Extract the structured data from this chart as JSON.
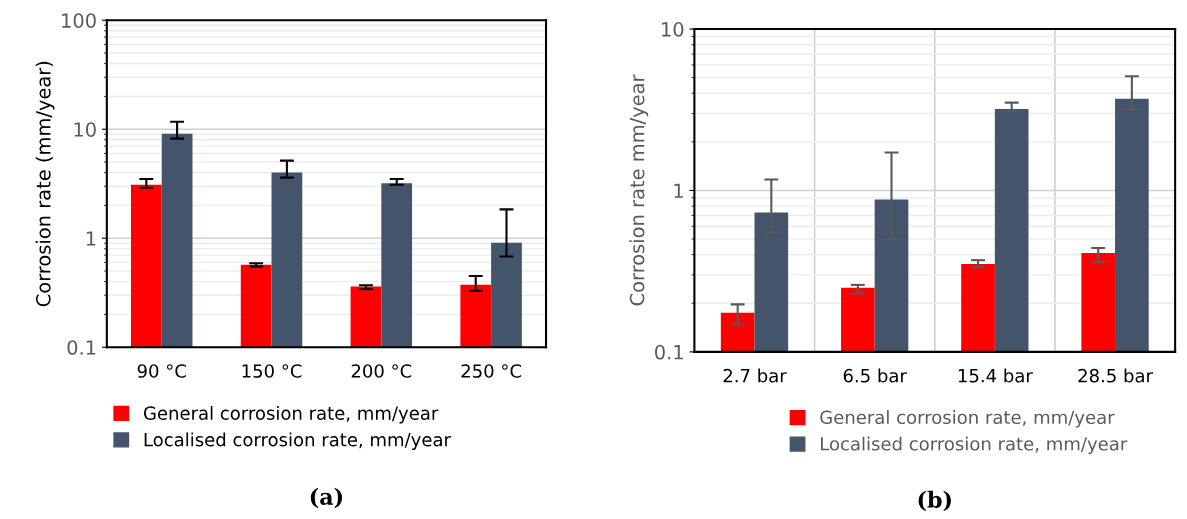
{
  "chart_data": [
    {
      "type": "bar",
      "ylabel": "Corrosion rate (mm/year)",
      "categories": [
        "90 °C",
        "150 °C",
        "200 °C",
        "250 °C"
      ],
      "log": true,
      "ylim": [
        0.1,
        100
      ],
      "yticks": [
        0.1,
        1,
        10,
        100
      ],
      "grid": "y",
      "legend": "bottom",
      "annotations": [
        "(a)"
      ],
      "series": [
        {
          "name": "General corrosion rate, mm/year",
          "color": "#ff0000",
          "values": [
            3.1,
            0.57,
            0.36,
            0.375
          ],
          "errors": [
            [
              2.9,
              3.5
            ],
            [
              0.55,
              0.59
            ],
            [
              0.34,
              0.37
            ],
            [
              0.33,
              0.45
            ]
          ]
        },
        {
          "name": "Localised corrosion rate, mm/year",
          "color": "#44546a",
          "values": [
            9.1,
            4.0,
            3.2,
            0.91
          ],
          "errors": [
            [
              8.2,
              11.7
            ],
            [
              3.6,
              5.15
            ],
            [
              3.1,
              3.5
            ],
            [
              0.68,
              1.84
            ]
          ]
        }
      ]
    },
    {
      "type": "bar",
      "ylabel": "Corrosion rate mm/year",
      "categories": [
        "2.7 bar",
        "6.5 bar",
        "15.4 bar",
        "28.5 bar"
      ],
      "log": true,
      "ylim": [
        0.1,
        10
      ],
      "yticks": [
        0.1,
        1,
        10
      ],
      "grid": true,
      "legend": "bottom",
      "annotations": [
        "(b)"
      ],
      "series": [
        {
          "name": "General corrosion rate, mm/year",
          "color": "#ff0000",
          "values": [
            0.175,
            0.25,
            0.35,
            0.41
          ],
          "errors": [
            [
              0.148,
              0.197
            ],
            [
              0.23,
              0.26
            ],
            [
              0.335,
              0.37
            ],
            [
              0.36,
              0.44
            ]
          ]
        },
        {
          "name": "Localised corrosion rate, mm/year",
          "color": "#44546a",
          "values": [
            0.73,
            0.88,
            3.2,
            3.7
          ],
          "errors": [
            [
              0.55,
              1.17
            ],
            [
              0.5,
              1.72
            ],
            [
              3.1,
              3.5
            ],
            [
              3.15,
              5.1
            ]
          ]
        }
      ]
    }
  ]
}
